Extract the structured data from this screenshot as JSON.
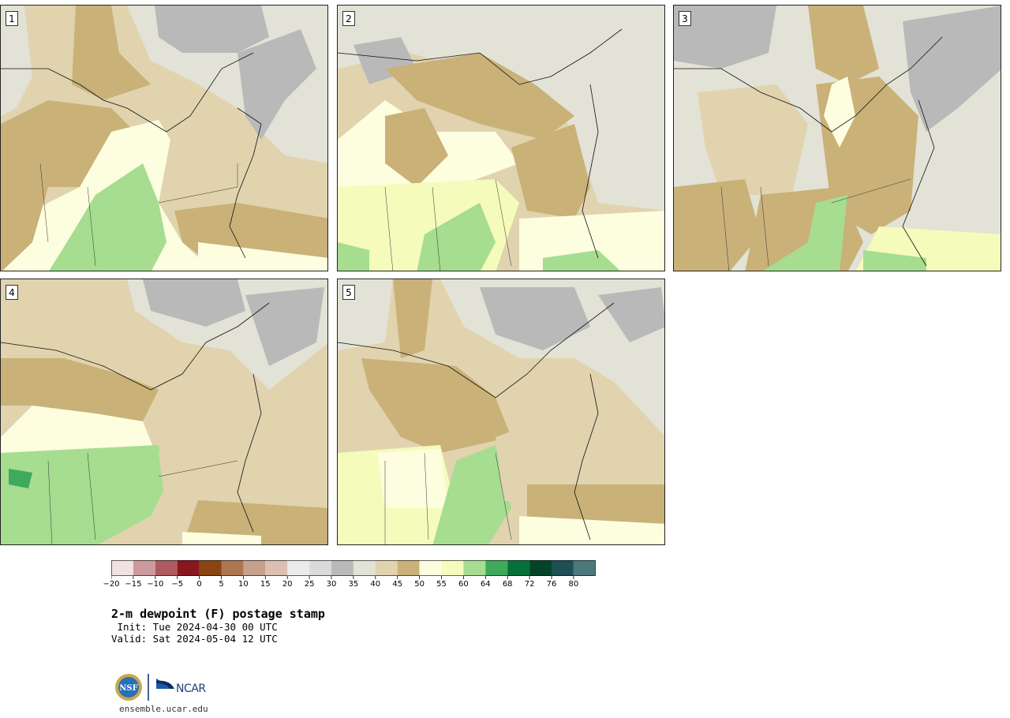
{
  "panels": [
    {
      "label": "1"
    },
    {
      "label": "2"
    },
    {
      "label": "3"
    },
    {
      "label": "4"
    },
    {
      "label": "5"
    }
  ],
  "colorbar": {
    "bins": [
      {
        "min": -20,
        "max": -15,
        "color": "#f0e2e2"
      },
      {
        "min": -15,
        "max": -10,
        "color": "#cc9a9e"
      },
      {
        "min": -10,
        "max": -5,
        "color": "#ad5a60"
      },
      {
        "min": -5,
        "max": 0,
        "color": "#8a1620"
      },
      {
        "min": 0,
        "max": 5,
        "color": "#8a4512"
      },
      {
        "min": 5,
        "max": 10,
        "color": "#ad7650"
      },
      {
        "min": 10,
        "max": 15,
        "color": "#c6a08a"
      },
      {
        "min": 15,
        "max": 20,
        "color": "#dcbfb0"
      },
      {
        "min": 20,
        "max": 25,
        "color": "#ebebeb"
      },
      {
        "min": 25,
        "max": 30,
        "color": "#dadada"
      },
      {
        "min": 30,
        "max": 35,
        "color": "#b9b9b9"
      },
      {
        "min": 35,
        "max": 40,
        "color": "#e2e2d6"
      },
      {
        "min": 40,
        "max": 45,
        "color": "#e0d3ae"
      },
      {
        "min": 45,
        "max": 50,
        "color": "#c9b178"
      },
      {
        "min": 50,
        "max": 55,
        "color": "#fdfde0"
      },
      {
        "min": 55,
        "max": 60,
        "color": "#f5fbbb"
      },
      {
        "min": 60,
        "max": 64,
        "color": "#a6dd90"
      },
      {
        "min": 64,
        "max": 68,
        "color": "#3faa5b"
      },
      {
        "min": 68,
        "max": 72,
        "color": "#04703a"
      },
      {
        "min": 72,
        "max": 76,
        "color": "#03442a"
      },
      {
        "min": 76,
        "max": 80,
        "color": "#1d5054"
      },
      {
        "min": 80,
        "max": 84,
        "color": "#4b787b"
      }
    ],
    "tick_labels": [
      "−20",
      "−15",
      "−10",
      "−5",
      "0",
      "5",
      "10",
      "15",
      "20",
      "25",
      "30",
      "35",
      "40",
      "45",
      "50",
      "55",
      "60",
      "64",
      "68",
      "72",
      "76",
      "80"
    ]
  },
  "title": "2-m dewpoint (F) postage stamp",
  "init": " Init: Tue 2024-04-30 00 UTC",
  "valid": "Valid: Sat 2024-05-04 12 UTC",
  "logos": {
    "nsf": "NSF",
    "ncar": "NCAR"
  },
  "footer": "ensemble.ucar.edu"
}
